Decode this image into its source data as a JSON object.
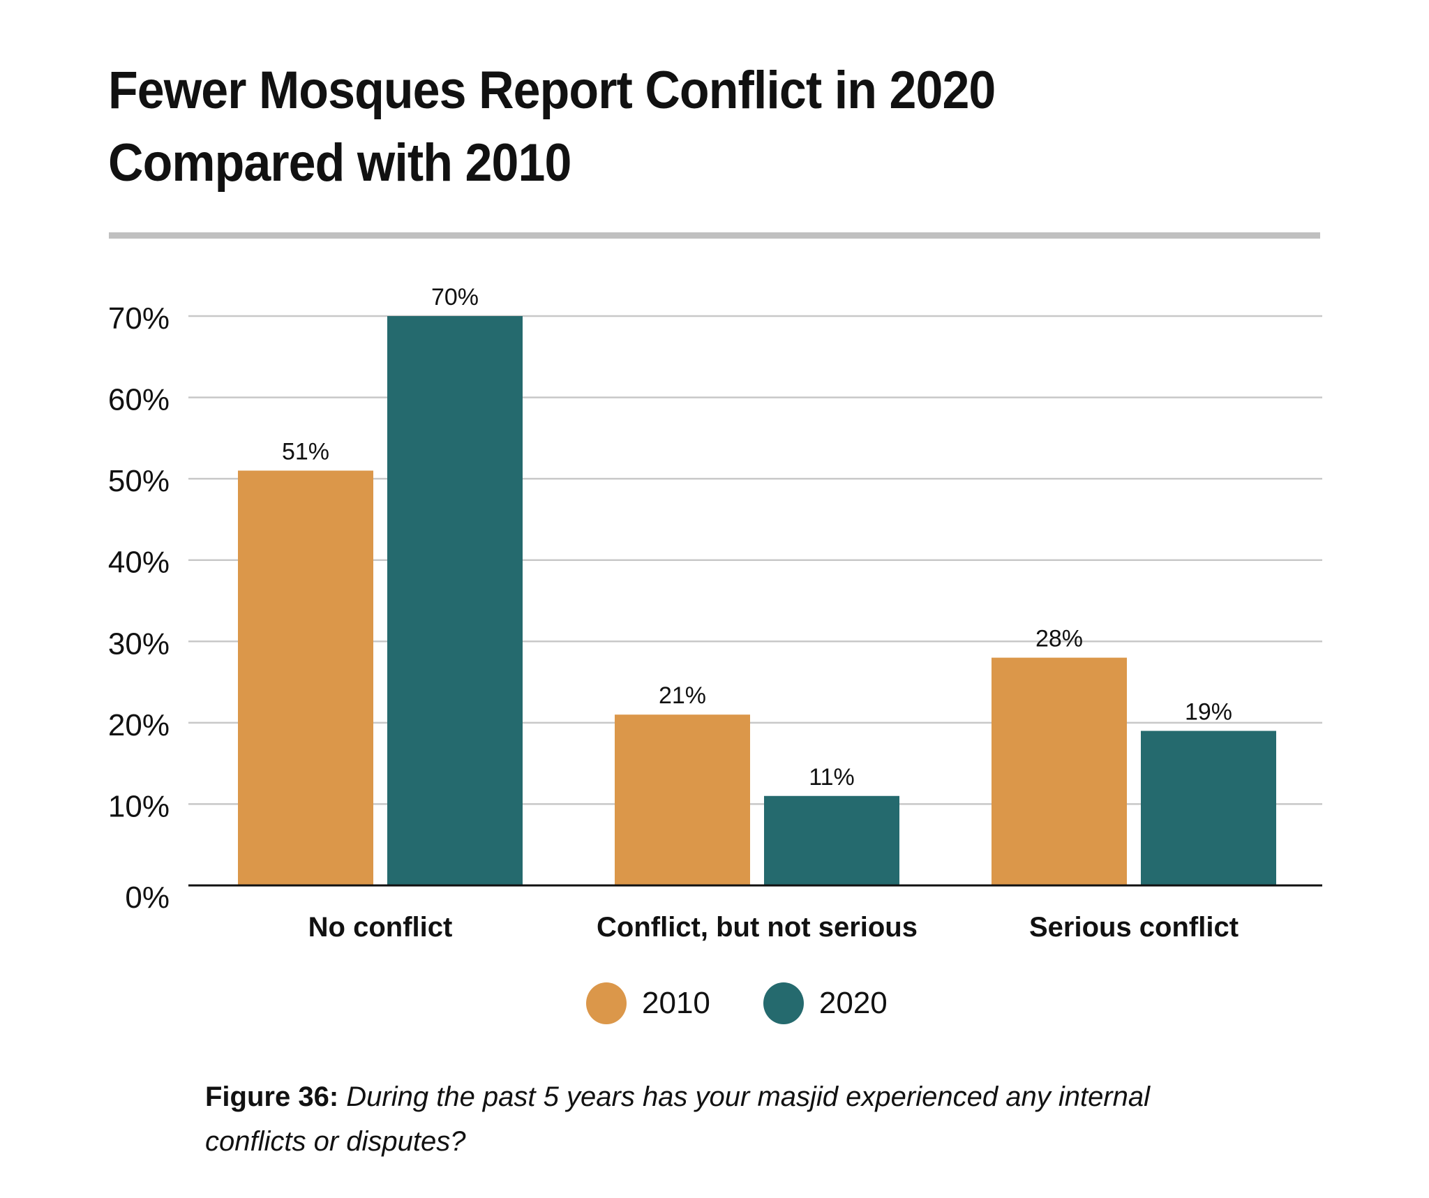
{
  "title_lines": [
    "Fewer Mosques Report Conflict in 2020",
    "Compared with 2010"
  ],
  "colors": {
    "2010": "#DB974A",
    "2020": "#256A6E",
    "grid": "#c8c8c8",
    "axis": "#111111"
  },
  "chart_data": {
    "type": "bar",
    "title": "Fewer Mosques Report Conflict in 2020 Compared with 2010",
    "categories": [
      "No conflict",
      "Conflict, but not serious",
      "Serious conflict"
    ],
    "series": [
      {
        "name": "2010",
        "values": [
          51,
          21,
          28
        ]
      },
      {
        "name": "2020",
        "values": [
          70,
          11,
          19
        ]
      }
    ],
    "data_labels": [
      [
        "51%",
        "21%",
        "28%"
      ],
      [
        "70%",
        "11%",
        "19%"
      ]
    ],
    "y_ticks": [
      "0%",
      "10%",
      "20%",
      "30%",
      "40%",
      "50%",
      "60%",
      "70%"
    ],
    "ylim": [
      0,
      70
    ],
    "xlabel": "",
    "ylabel": "",
    "grid": true,
    "legend": "bottom-center"
  },
  "legend": [
    {
      "label": "2010"
    },
    {
      "label": "2020"
    }
  ],
  "caption": {
    "label": "Figure 36:",
    "text": " During the past 5 years has your masjid experienced any internal conflicts or disputes?"
  }
}
